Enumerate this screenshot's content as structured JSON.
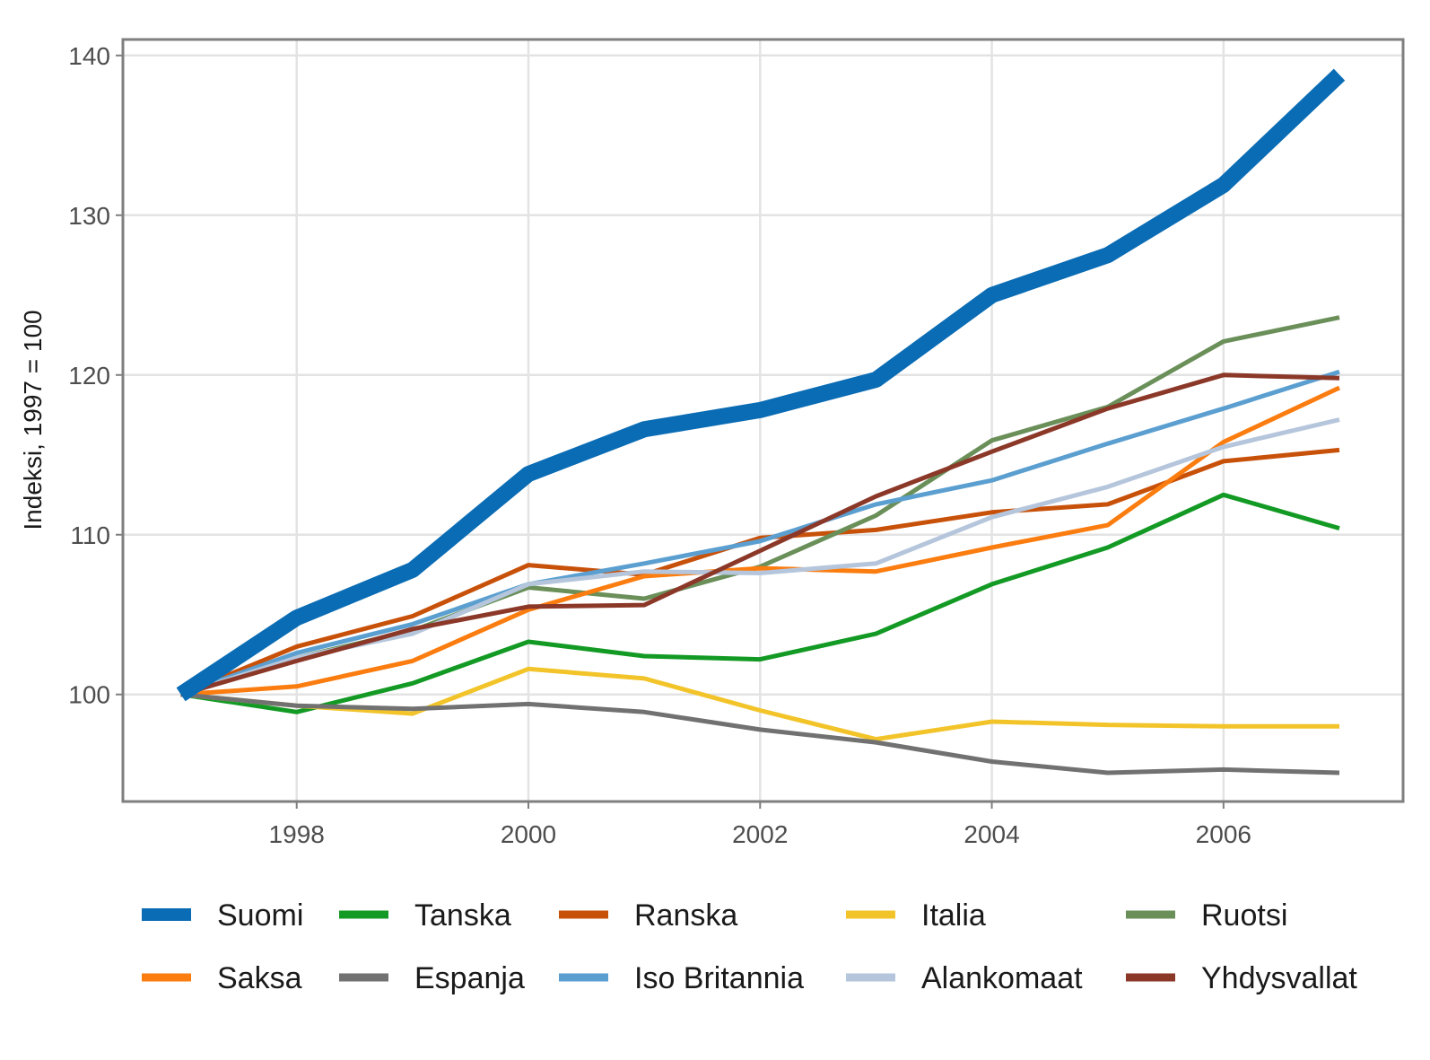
{
  "chart_data": {
    "type": "line",
    "title": "",
    "xlabel": "",
    "ylabel": "Indeksi, 1997 = 100",
    "xlim": [
      1996.5,
      2007.55
    ],
    "ylim": [
      93.3,
      141
    ],
    "x_ticks": [
      1998,
      2000,
      2002,
      2004,
      2006
    ],
    "y_ticks": [
      100,
      110,
      120,
      130,
      140
    ],
    "grid": true,
    "legend_position": "bottom",
    "x": [
      1997,
      1998,
      1999,
      2000,
      2001,
      2002,
      2003,
      2004,
      2005,
      2006,
      2007
    ],
    "series": [
      {
        "name": "Suomi",
        "color": "#0a6cb4",
        "emphasis": true,
        "values": [
          100,
          104.8,
          107.8,
          113.8,
          116.6,
          117.8,
          119.7,
          125.0,
          127.5,
          131.9,
          138.8
        ]
      },
      {
        "name": "Tanska",
        "color": "#139a24",
        "values": [
          100,
          98.9,
          100.7,
          103.3,
          102.4,
          102.2,
          103.8,
          106.9,
          109.2,
          112.5,
          110.4
        ]
      },
      {
        "name": "Ranska",
        "color": "#c8510a",
        "values": [
          100,
          103.0,
          104.9,
          108.1,
          107.5,
          109.8,
          110.3,
          111.4,
          111.9,
          114.6,
          115.3
        ]
      },
      {
        "name": "Italia",
        "color": "#f2c42a",
        "values": [
          100,
          99.3,
          98.8,
          101.6,
          101.0,
          99.0,
          97.2,
          98.3,
          98.1,
          98.0,
          98.0
        ]
      },
      {
        "name": "Ruotsi",
        "color": "#6a8f59",
        "values": [
          100,
          102.3,
          104.0,
          106.7,
          106.0,
          108.0,
          111.2,
          115.9,
          118.0,
          122.1,
          123.6
        ]
      },
      {
        "name": "Saksa",
        "color": "#fb7c0f",
        "values": [
          100,
          100.5,
          102.1,
          105.3,
          107.4,
          107.9,
          107.7,
          109.2,
          110.6,
          115.8,
          119.2
        ]
      },
      {
        "name": "Espanja",
        "color": "#717171",
        "values": [
          100,
          99.3,
          99.1,
          99.4,
          98.9,
          97.8,
          97.0,
          95.8,
          95.1,
          95.3,
          95.1
        ]
      },
      {
        "name": "Iso Britannia",
        "color": "#5b9fd0",
        "values": [
          100,
          102.6,
          104.4,
          106.9,
          108.2,
          109.6,
          111.9,
          113.4,
          115.7,
          117.9,
          120.2
        ]
      },
      {
        "name": "Alankomaat",
        "color": "#b5c6dc",
        "values": [
          100,
          102.3,
          103.8,
          106.9,
          107.7,
          107.6,
          108.2,
          111.1,
          113.0,
          115.5,
          117.2
        ]
      },
      {
        "name": "Yhdysvallat",
        "color": "#8b3828",
        "values": [
          100,
          102.1,
          104.1,
          105.5,
          105.6,
          109.0,
          112.4,
          115.2,
          117.9,
          120.0,
          119.8
        ]
      }
    ]
  }
}
